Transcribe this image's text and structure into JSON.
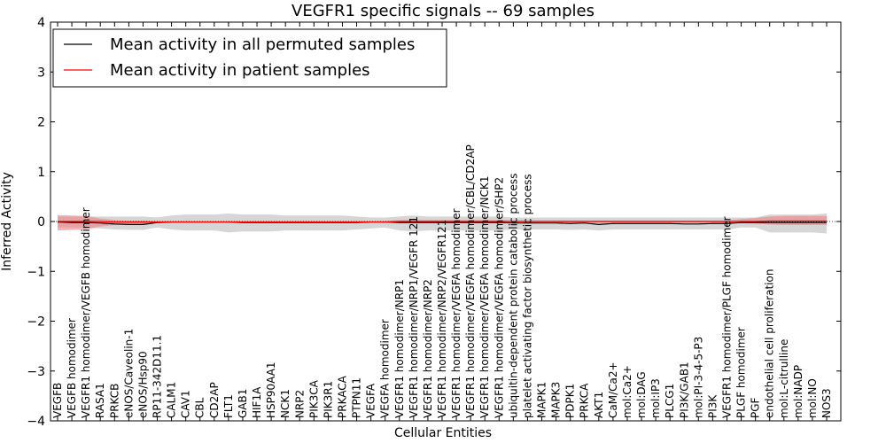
{
  "chart_data": {
    "type": "line",
    "title": "VEGFR1 specific signals -- 69 samples",
    "xlabel": "Cellular Entities",
    "ylabel": "Inferred Activity",
    "ylim": [
      -4,
      4
    ],
    "yticks": [
      -4,
      -3,
      -2,
      -1,
      0,
      1,
      2,
      3,
      4
    ],
    "ytick_labels": [
      "−4",
      "−3",
      "−2",
      "−1",
      "0",
      "1",
      "2",
      "3",
      "4"
    ],
    "grid": false,
    "legend_location": "top-left",
    "categories": [
      "VEGFB",
      "VEGFB homodimer",
      "VEGFR1 homodimer/VEGFB homodimer",
      "RASA1",
      "PRKCB",
      "eNOS/Caveolin-1",
      "eNOS/Hsp90",
      "RP11-342D11.1",
      "CALM1",
      "CAV1",
      "CBL",
      "CD2AP",
      "FLT1",
      "GAB1",
      "HIF1A",
      "HSP90AA1",
      "NCK1",
      "NRP2",
      "PIK3CA",
      "PIK3R1",
      "PRKACA",
      "PTPN11",
      "VEGFA",
      "VEGFA homodimer",
      "VEGFR1 homodimer/NRP1",
      "VEGFR1 homodimer/NRP1/VEGFR 121",
      "VEGFR1 homodimer/NRP2",
      "VEGFR1 homodimer/NRP2/VEGFR121",
      "VEGFR1 homodimer/VEGFA homodimer",
      "VEGFR1 homodimer/VEGFA homodimer/CBL/CD2AP",
      "VEGFR1 homodimer/VEGFA homodimer/NCK1",
      "VEGFR1 homodimer/VEGFA homodimer/SHP2",
      "ubiquitin-dependent protein catabolic process",
      "platelet activating factor biosynthetic process",
      "MAPK1",
      "MAPK3",
      "PDPK1",
      "PRKCA",
      "AKT1",
      "CaM/Ca2+",
      "mol:Ca2+",
      "mol:DAG",
      "mol:IP3",
      "PLCG1",
      "PI3K/GAB1",
      "mol:PI-3-4-5-P3",
      "PI3K",
      "VEGFR1 homodimer/PLGF homodimer",
      "PLGF homodimer",
      "PGF",
      "endothelial cell proliferation",
      "mol:L-citrulline",
      "mol:NADP",
      "mol:NO",
      "NOS3"
    ],
    "series": [
      {
        "name": "Mean activity in all permuted samples",
        "color": "#000000",
        "values": [
          -0.01,
          -0.02,
          -0.02,
          -0.03,
          -0.05,
          -0.06,
          -0.06,
          -0.02,
          -0.01,
          -0.01,
          -0.01,
          -0.01,
          -0.01,
          -0.02,
          -0.02,
          -0.02,
          -0.02,
          -0.02,
          -0.02,
          -0.02,
          -0.02,
          -0.02,
          -0.01,
          -0.01,
          -0.02,
          -0.02,
          -0.02,
          -0.02,
          -0.02,
          -0.02,
          -0.02,
          -0.02,
          -0.03,
          -0.03,
          -0.03,
          -0.03,
          -0.04,
          -0.03,
          -0.06,
          -0.04,
          -0.04,
          -0.04,
          -0.04,
          -0.04,
          -0.05,
          -0.05,
          -0.04,
          -0.04,
          -0.02,
          -0.02,
          -0.02,
          -0.02,
          -0.02,
          -0.02,
          -0.02
        ],
        "band_lower": [
          -0.12,
          -0.12,
          -0.13,
          -0.14,
          -0.16,
          -0.17,
          -0.17,
          -0.12,
          -0.16,
          -0.18,
          -0.18,
          -0.18,
          -0.22,
          -0.2,
          -0.2,
          -0.2,
          -0.18,
          -0.18,
          -0.18,
          -0.18,
          -0.18,
          -0.16,
          -0.14,
          -0.12,
          -0.18,
          -0.2,
          -0.18,
          -0.18,
          -0.18,
          -0.18,
          -0.18,
          -0.18,
          -0.16,
          -0.16,
          -0.16,
          -0.16,
          -0.17,
          -0.16,
          -0.18,
          -0.16,
          -0.16,
          -0.16,
          -0.16,
          -0.16,
          -0.16,
          -0.16,
          -0.16,
          -0.16,
          -0.12,
          -0.12,
          -0.22,
          -0.22,
          -0.22,
          -0.22,
          -0.24
        ],
        "band_upper": [
          0.1,
          0.1,
          0.1,
          0.1,
          0.1,
          0.1,
          0.1,
          0.08,
          0.12,
          0.14,
          0.14,
          0.14,
          0.16,
          0.14,
          0.14,
          0.14,
          0.12,
          0.12,
          0.12,
          0.12,
          0.12,
          0.1,
          0.08,
          0.08,
          0.1,
          0.12,
          0.1,
          0.1,
          0.1,
          0.1,
          0.1,
          0.1,
          0.08,
          0.08,
          0.08,
          0.08,
          0.08,
          0.08,
          0.08,
          0.08,
          0.08,
          0.08,
          0.08,
          0.08,
          0.08,
          0.08,
          0.08,
          0.08,
          0.08,
          0.08,
          0.14,
          0.14,
          0.14,
          0.14,
          0.16
        ]
      },
      {
        "name": "Mean activity in patient samples",
        "color": "#ff0000",
        "values": [
          0.0,
          0.0,
          0.0,
          0.0,
          -0.01,
          -0.01,
          -0.01,
          -0.01,
          -0.01,
          -0.01,
          -0.01,
          -0.01,
          -0.01,
          -0.01,
          -0.01,
          -0.01,
          -0.01,
          -0.01,
          -0.01,
          -0.01,
          -0.01,
          -0.01,
          -0.01,
          -0.01,
          0.0,
          0.0,
          0.0,
          0.0,
          0.0,
          0.0,
          0.0,
          0.0,
          0.0,
          0.0,
          0.0,
          0.0,
          0.0,
          0.0,
          0.0,
          0.0,
          0.0,
          0.0,
          0.0,
          0.0,
          0.0,
          0.0,
          0.0,
          0.0,
          0.0,
          0.0,
          0.01,
          0.01,
          0.01,
          0.01,
          0.01
        ],
        "band_lower": [
          -0.18,
          -0.17,
          -0.16,
          -0.1,
          -0.07,
          -0.05,
          -0.05,
          -0.03,
          -0.02,
          -0.02,
          -0.02,
          -0.02,
          -0.02,
          -0.02,
          -0.02,
          -0.02,
          -0.02,
          -0.02,
          -0.02,
          -0.02,
          -0.02,
          -0.02,
          -0.02,
          -0.02,
          -0.03,
          -0.03,
          -0.03,
          -0.03,
          -0.03,
          -0.03,
          -0.03,
          -0.03,
          -0.02,
          -0.02,
          -0.02,
          -0.02,
          -0.02,
          -0.02,
          -0.02,
          -0.02,
          -0.02,
          -0.02,
          -0.02,
          -0.02,
          -0.02,
          -0.02,
          -0.02,
          -0.02,
          -0.03,
          -0.04,
          -0.06,
          -0.07,
          -0.07,
          -0.07,
          -0.07
        ],
        "band_upper": [
          0.13,
          0.12,
          0.11,
          0.06,
          0.03,
          0.02,
          0.02,
          0.01,
          0.01,
          0.01,
          0.01,
          0.01,
          0.01,
          0.01,
          0.01,
          0.01,
          0.01,
          0.01,
          0.01,
          0.01,
          0.01,
          0.01,
          0.01,
          0.01,
          0.03,
          0.03,
          0.03,
          0.03,
          0.03,
          0.03,
          0.03,
          0.03,
          0.02,
          0.02,
          0.02,
          0.02,
          0.02,
          0.02,
          0.02,
          0.02,
          0.02,
          0.02,
          0.02,
          0.02,
          0.02,
          0.02,
          0.02,
          0.02,
          0.05,
          0.07,
          0.1,
          0.11,
          0.11,
          0.11,
          0.11
        ]
      }
    ],
    "baseline": 0,
    "colors": {
      "permuted_band": "#c8c8c8",
      "patient_band": "#f08080",
      "axes": "#000000"
    }
  }
}
